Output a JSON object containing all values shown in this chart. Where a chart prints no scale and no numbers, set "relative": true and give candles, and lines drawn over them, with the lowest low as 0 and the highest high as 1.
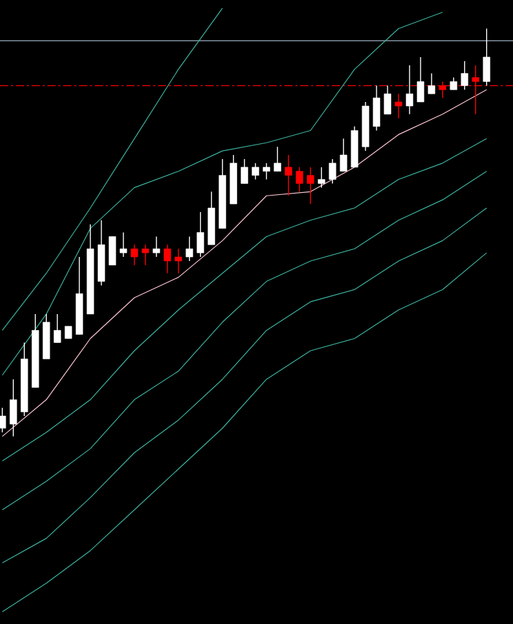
{
  "chart_data": {
    "type": "candlestick",
    "relative": true,
    "categories": [
      null,
      null,
      null,
      null,
      null,
      null,
      null,
      null,
      null,
      null,
      null,
      null,
      null,
      null,
      null,
      null,
      null,
      null,
      null,
      null,
      null,
      null,
      null,
      null,
      null,
      null,
      null,
      null,
      null,
      null,
      null,
      null,
      null,
      null,
      null,
      null,
      null,
      null,
      null,
      null,
      null,
      null,
      null,
      null,
      null
    ],
    "ohlc": [
      [
        0.02,
        0.07,
        0.01,
        0.05
      ],
      [
        0.03,
        0.14,
        0.0,
        0.09
      ],
      [
        0.06,
        0.23,
        0.05,
        0.19
      ],
      [
        0.12,
        0.3,
        0.12,
        0.26
      ],
      [
        0.19,
        0.3,
        0.19,
        0.28
      ],
      [
        0.23,
        0.3,
        0.23,
        0.26
      ],
      [
        0.24,
        0.27,
        0.24,
        0.27
      ],
      [
        0.25,
        0.44,
        0.25,
        0.35
      ],
      [
        0.3,
        0.52,
        0.3,
        0.46
      ],
      [
        0.38,
        0.53,
        0.37,
        0.47
      ],
      [
        0.42,
        0.49,
        0.42,
        0.49
      ],
      [
        0.45,
        0.5,
        0.44,
        0.46
      ],
      [
        0.46,
        0.47,
        0.42,
        0.44
      ],
      [
        0.46,
        0.47,
        0.42,
        0.45
      ],
      [
        0.45,
        0.49,
        0.44,
        0.46
      ],
      [
        0.46,
        0.47,
        0.4,
        0.43
      ],
      [
        0.44,
        0.46,
        0.4,
        0.43
      ],
      [
        0.44,
        0.49,
        0.43,
        0.46
      ],
      [
        0.45,
        0.55,
        0.44,
        0.5
      ],
      [
        0.47,
        0.6,
        0.47,
        0.56
      ],
      [
        0.51,
        0.68,
        0.51,
        0.64
      ],
      [
        0.57,
        0.69,
        0.57,
        0.67
      ],
      [
        0.62,
        0.68,
        0.62,
        0.66
      ],
      [
        0.64,
        0.67,
        0.63,
        0.66
      ],
      [
        0.65,
        0.67,
        0.63,
        0.66
      ],
      [
        0.65,
        0.71,
        0.65,
        0.67
      ],
      [
        0.66,
        0.69,
        0.59,
        0.64
      ],
      [
        0.65,
        0.66,
        0.6,
        0.62
      ],
      [
        0.64,
        0.66,
        0.57,
        0.62
      ],
      [
        0.62,
        0.66,
        0.61,
        0.63
      ],
      [
        0.63,
        0.68,
        0.62,
        0.67
      ],
      [
        0.65,
        0.73,
        0.65,
        0.69
      ],
      [
        0.66,
        0.76,
        0.66,
        0.75
      ],
      [
        0.71,
        0.82,
        0.7,
        0.81
      ],
      [
        0.76,
        0.86,
        0.75,
        0.83
      ],
      [
        0.79,
        0.86,
        0.79,
        0.84
      ],
      [
        0.82,
        0.84,
        0.78,
        0.81
      ],
      [
        0.81,
        0.91,
        0.79,
        0.84
      ],
      [
        0.82,
        0.93,
        0.82,
        0.87
      ],
      [
        0.84,
        0.89,
        0.84,
        0.86
      ],
      [
        0.86,
        0.87,
        0.83,
        0.85
      ],
      [
        0.85,
        0.88,
        0.85,
        0.87
      ],
      [
        0.86,
        0.92,
        0.85,
        0.89
      ],
      [
        0.88,
        0.91,
        0.79,
        0.87
      ],
      [
        0.87,
        1.0,
        0.86,
        0.93
      ]
    ],
    "colors": [
      "#ffffff",
      "#ffffff",
      "#ffffff",
      "#ffffff",
      "#ffffff",
      "#ffffff",
      "#ffffff",
      "#ffffff",
      "#ffffff",
      "#ffffff",
      "#ffffff",
      "#ffffff",
      "#ff0000",
      "#ff0000",
      "#ffffff",
      "#ff0000",
      "#ff0000",
      "#ffffff",
      "#ffffff",
      "#ffffff",
      "#ffffff",
      "#ffffff",
      "#ffffff",
      "#ffffff",
      "#ffffff",
      "#ffffff",
      "#ff0000",
      "#ff0000",
      "#ff0000",
      "#ffffff",
      "#ffffff",
      "#ffffff",
      "#ffffff",
      "#ffffff",
      "#ffffff",
      "#ffffff",
      "#ff0000",
      "#ffffff",
      "#ffffff",
      "#ffffff",
      "#ff0000",
      "#ffffff",
      "#ffffff",
      "#ff0000",
      "#ffffff"
    ],
    "series": [
      {
        "type": "line",
        "color": "#3cb4a0",
        "values": [
          0.26,
          null,
          null,
          null,
          0.4,
          null,
          null,
          null,
          0.56,
          null,
          null,
          null,
          0.73,
          null,
          null,
          null,
          0.9,
          null,
          null,
          null,
          1.05,
          null,
          null,
          null,
          null,
          null,
          null,
          null,
          null,
          null,
          null,
          null,
          null,
          null,
          null,
          null,
          null,
          null,
          null,
          null,
          null,
          null,
          null,
          null,
          null
        ]
      },
      {
        "type": "line",
        "color": "#3cb4a0",
        "values": [
          0.15,
          null,
          null,
          null,
          0.3,
          null,
          null,
          null,
          0.51,
          null,
          null,
          null,
          0.61,
          null,
          null,
          null,
          0.65,
          null,
          null,
          null,
          0.7,
          null,
          null,
          null,
          0.72,
          null,
          null,
          null,
          0.75,
          null,
          null,
          null,
          0.9,
          null,
          null,
          null,
          1.0,
          null,
          null,
          null,
          1.04,
          null,
          null,
          null,
          null
        ]
      },
      {
        "type": "line",
        "color": "#ffc8d2",
        "values": [
          0.0,
          null,
          null,
          null,
          0.09,
          null,
          null,
          null,
          0.24,
          null,
          null,
          null,
          0.34,
          null,
          null,
          null,
          0.39,
          null,
          null,
          null,
          0.48,
          null,
          null,
          null,
          0.59,
          null,
          null,
          null,
          0.6,
          null,
          null,
          null,
          0.66,
          null,
          null,
          null,
          0.74,
          null,
          null,
          null,
          0.79,
          null,
          null,
          null,
          0.85
        ]
      },
      {
        "type": "line",
        "color": "#3cb4a0",
        "values": [
          -0.06,
          null,
          null,
          null,
          0.01,
          null,
          null,
          null,
          0.09,
          null,
          null,
          null,
          0.21,
          null,
          null,
          null,
          0.31,
          null,
          null,
          null,
          0.4,
          null,
          null,
          null,
          0.49,
          null,
          null,
          null,
          0.53,
          null,
          null,
          null,
          0.56,
          null,
          null,
          null,
          0.63,
          null,
          null,
          null,
          0.67,
          null,
          null,
          null,
          0.73
        ]
      },
      {
        "type": "line",
        "color": "#3cb4a0",
        "values": [
          -0.18,
          null,
          null,
          null,
          -0.11,
          null,
          null,
          null,
          -0.03,
          null,
          null,
          null,
          0.09,
          null,
          null,
          null,
          0.16,
          null,
          null,
          null,
          0.28,
          null,
          null,
          null,
          0.38,
          null,
          null,
          null,
          0.43,
          null,
          null,
          null,
          0.46,
          null,
          null,
          null,
          0.53,
          null,
          null,
          null,
          0.58,
          null,
          null,
          null,
          0.65
        ]
      },
      {
        "type": "line",
        "color": "#3cb4a0",
        "values": [
          -0.31,
          null,
          null,
          null,
          -0.25,
          null,
          null,
          null,
          -0.15,
          null,
          null,
          null,
          -0.04,
          null,
          null,
          null,
          0.04,
          null,
          null,
          null,
          0.14,
          null,
          null,
          null,
          0.26,
          null,
          null,
          null,
          0.33,
          null,
          null,
          null,
          0.36,
          null,
          null,
          null,
          0.43,
          null,
          null,
          null,
          0.48,
          null,
          null,
          null,
          0.56
        ]
      },
      {
        "type": "line",
        "color": "#3cb4a0",
        "values": [
          -0.43,
          null,
          null,
          null,
          -0.36,
          null,
          null,
          null,
          -0.28,
          null,
          null,
          null,
          -0.18,
          null,
          null,
          null,
          -0.08,
          null,
          null,
          null,
          0.02,
          null,
          null,
          null,
          0.14,
          null,
          null,
          null,
          0.21,
          null,
          null,
          null,
          0.24,
          null,
          null,
          null,
          0.31,
          null,
          null,
          null,
          0.36,
          null,
          null,
          null,
          0.45
        ]
      }
    ],
    "ref_lines": [
      {
        "axis": "y",
        "value": 0.97,
        "color": "#a0b4c8",
        "line_style": "solid"
      },
      {
        "axis": "y",
        "value": 0.86,
        "color": "#ff0000",
        "line_style": "dashed"
      }
    ]
  }
}
